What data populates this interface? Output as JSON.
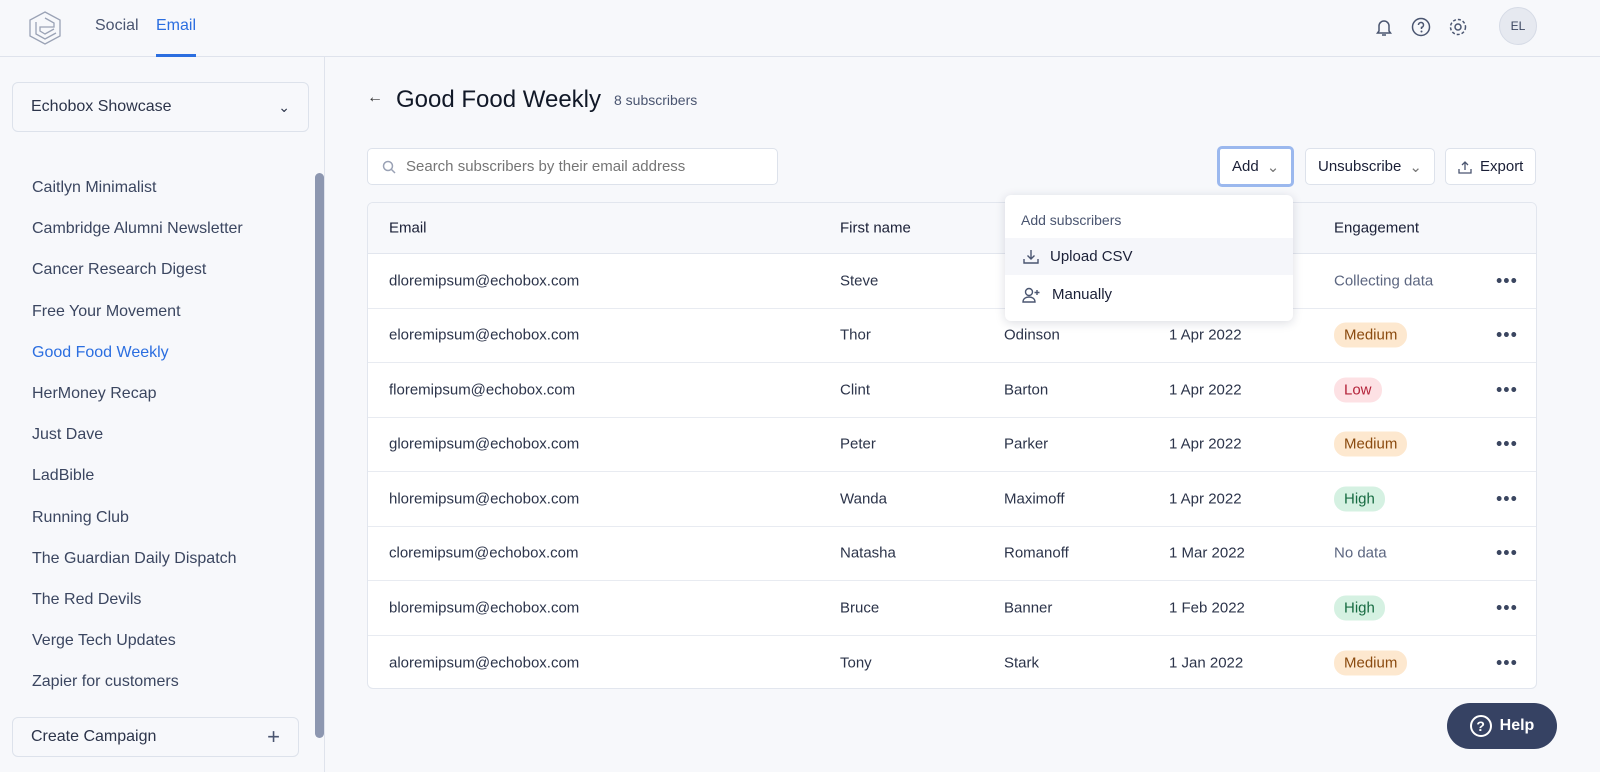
{
  "nav": {
    "tabs": [
      {
        "label": "Social"
      },
      {
        "label": "Email",
        "active": true
      }
    ],
    "avatar": "EL"
  },
  "sidebar": {
    "account": "Echobox Showcase",
    "campaigns": [
      "Caitlyn Minimalist",
      "Cambridge Alumni Newsletter",
      "Cancer Research Digest",
      "Free Your Movement",
      "Good Food Weekly",
      "HerMoney Recap",
      "Just Dave",
      "LadBible",
      "Running Club",
      "The Guardian Daily Dispatch",
      "The Red Devils",
      "Verge Tech Updates",
      "Zapier for customers"
    ],
    "selected": "Good Food Weekly",
    "create": "Create Campaign"
  },
  "main": {
    "title": "Good Food Weekly",
    "subscribers": "8 subscribers",
    "search_placeholder": "Search subscribers by their email address",
    "add": "Add",
    "unsubscribe": "Unsubscribe",
    "export": "Export",
    "columns": {
      "email": "Email",
      "first": "First name",
      "engagement": "Engagement"
    },
    "rows": [
      {
        "email": "dloremipsum@echobox.com",
        "first": "Steve",
        "last": "",
        "date": "",
        "engagement": "Collecting data",
        "type": "text"
      },
      {
        "email": "eloremipsum@echobox.com",
        "first": "Thor",
        "last": "Odinson",
        "date": "1 Apr 2022",
        "engagement": "Medium",
        "type": "badge"
      },
      {
        "email": "floremipsum@echobox.com",
        "first": "Clint",
        "last": "Barton",
        "date": "1 Apr 2022",
        "engagement": "Low",
        "type": "badge"
      },
      {
        "email": "gloremipsum@echobox.com",
        "first": "Peter",
        "last": "Parker",
        "date": "1 Apr 2022",
        "engagement": "Medium",
        "type": "badge"
      },
      {
        "email": "hloremipsum@echobox.com",
        "first": "Wanda",
        "last": "Maximoff",
        "date": "1 Apr 2022",
        "engagement": "High",
        "type": "badge"
      },
      {
        "email": "cloremipsum@echobox.com",
        "first": "Natasha",
        "last": "Romanoff",
        "date": "1 Mar 2022",
        "engagement": "No data",
        "type": "text"
      },
      {
        "email": "bloremipsum@echobox.com",
        "first": "Bruce",
        "last": "Banner",
        "date": "1 Feb 2022",
        "engagement": "High",
        "type": "badge"
      },
      {
        "email": "aloremipsum@echobox.com",
        "first": "Tony",
        "last": "Stark",
        "date": "1 Jan 2022",
        "engagement": "Medium",
        "type": "badge"
      }
    ]
  },
  "dropdown": {
    "header": "Add subscribers",
    "items": [
      "Upload CSV",
      "Manually"
    ]
  },
  "help": "Help"
}
